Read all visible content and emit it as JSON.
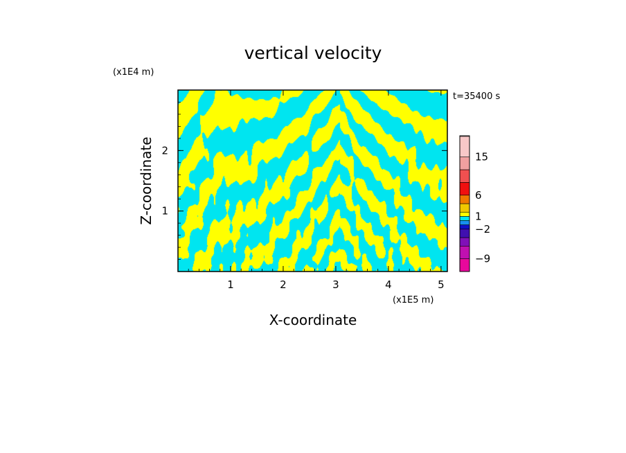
{
  "chart_data": {
    "type": "heatmap",
    "title": "vertical velocity",
    "xlabel": "X-coordinate",
    "ylabel": "Z-coordinate",
    "x_scale_label": "(x1E5 m)",
    "y_scale_label": "(x1E4 m)",
    "time_label": "t=35400 s",
    "xlim": [
      0,
      5.12
    ],
    "ylim": [
      0,
      3.0
    ],
    "x_ticks": [
      1,
      2,
      3,
      4,
      5
    ],
    "y_ticks": [
      1,
      2
    ],
    "x_tick_labels": [
      "1",
      "2",
      "3",
      "4",
      "5"
    ],
    "y_tick_labels": [
      "1",
      "2"
    ],
    "fill_colors": {
      "positive": "#ffff00",
      "negative": "#00e5f0"
    },
    "colorbar": {
      "labels": [
        "15",
        "6",
        "1",
        "−2",
        "−9"
      ],
      "label_values": [
        15,
        6,
        1,
        -2,
        -9
      ],
      "levels": [
        -12,
        -9,
        -6,
        -4,
        -2,
        -1,
        0,
        1,
        2,
        4,
        6,
        9,
        12,
        15,
        20
      ],
      "colors": [
        "#e8089c",
        "#c010b0",
        "#8010b8",
        "#4010b0",
        "#1010c8",
        "#1890f0",
        "#00e5f0",
        "#ffff00",
        "#f0c800",
        "#f07800",
        "#f01010",
        "#f05050",
        "#f0a0a0",
        "#f8c8c8",
        "#fde8e8"
      ]
    }
  }
}
